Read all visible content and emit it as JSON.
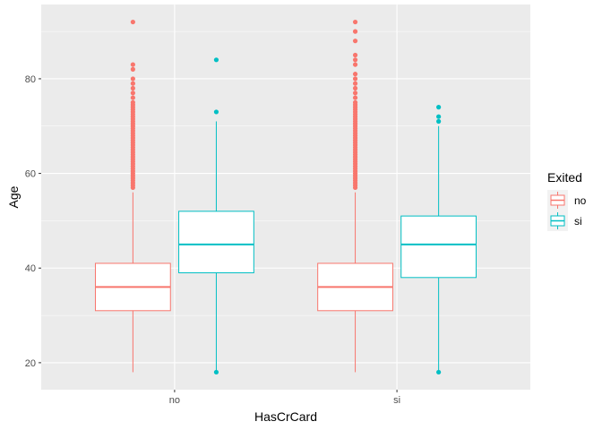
{
  "chart_data": {
    "type": "boxplot",
    "xlabel": "HasCrCard",
    "ylabel": "Age",
    "categories": [
      "no",
      "si"
    ],
    "y_ticks": [
      20,
      40,
      60,
      80
    ],
    "ylim": [
      14.3,
      95.7
    ],
    "grid": true,
    "legend": {
      "title": "Exited",
      "position": "right",
      "entries": [
        {
          "label": "no",
          "color": "#F8766D"
        },
        {
          "label": "si",
          "color": "#00BFC4"
        }
      ]
    },
    "series": [
      {
        "name": "no",
        "color": "#F8766D",
        "boxes": [
          {
            "category": "no",
            "whisker_low": 18,
            "q1": 31,
            "median": 36,
            "q3": 41,
            "whisker_high": 56,
            "outliers": [
              57,
              57.5,
              58,
              58.5,
              59,
              59.5,
              60,
              60.5,
              61,
              61.5,
              62,
              62.5,
              63,
              63.5,
              64,
              64.5,
              65,
              65.5,
              66,
              66.5,
              67,
              67.5,
              68,
              68.5,
              69,
              69.5,
              70,
              70.5,
              71,
              71.5,
              72,
              72.5,
              73,
              73.5,
              74,
              74.5,
              75,
              76,
              77,
              78,
              79,
              80,
              82,
              83,
              92
            ]
          },
          {
            "category": "si",
            "whisker_low": 18,
            "q1": 31,
            "median": 36,
            "q3": 41,
            "whisker_high": 56,
            "outliers": [
              57,
              57.5,
              58,
              58.5,
              59,
              59.5,
              60,
              60.5,
              61,
              61.5,
              62,
              62.5,
              63,
              63.5,
              64,
              64.5,
              65,
              65.5,
              66,
              66.5,
              67,
              67.5,
              68,
              68.5,
              69,
              69.5,
              70,
              70.5,
              71,
              71.5,
              72,
              72.5,
              73,
              73.5,
              74,
              74.5,
              75,
              76,
              77,
              78,
              79,
              80,
              81,
              83,
              84,
              85,
              88,
              90,
              92
            ]
          }
        ]
      },
      {
        "name": "si",
        "color": "#00BFC4",
        "boxes": [
          {
            "category": "no",
            "whisker_low": 18,
            "q1": 39,
            "median": 45,
            "q3": 52,
            "whisker_high": 71,
            "outliers": [
              18,
              73,
              84
            ]
          },
          {
            "category": "si",
            "whisker_low": 18,
            "q1": 38,
            "median": 45,
            "q3": 51,
            "whisker_high": 70,
            "outliers": [
              18,
              71,
              72,
              74
            ]
          }
        ]
      }
    ]
  }
}
